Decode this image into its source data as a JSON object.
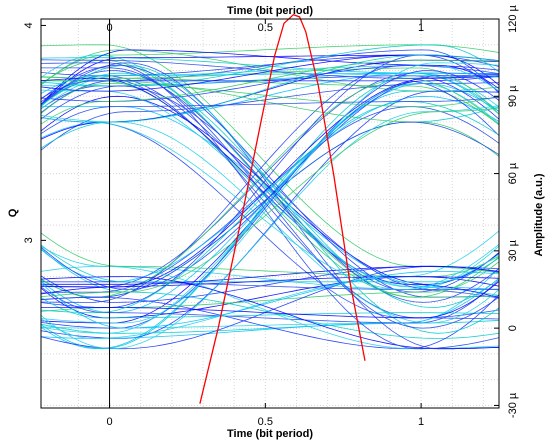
{
  "chart_data": {
    "type": "line",
    "subtype": "eye-diagram",
    "title": "",
    "top_axis": {
      "label": "Time (bit period)",
      "range": [
        -0.22,
        1.25
      ],
      "ticks": [
        {
          "value": 0,
          "label": "0"
        },
        {
          "value": 0.5,
          "label": "0.5"
        },
        {
          "value": 1,
          "label": "1"
        }
      ]
    },
    "bottom_axis": {
      "label": "Time (bit period)",
      "range": [
        -0.22,
        1.25
      ],
      "ticks": [
        {
          "value": 0,
          "label": "0"
        },
        {
          "value": 0.5,
          "label": "0.5"
        },
        {
          "value": 1,
          "label": "1"
        }
      ]
    },
    "left_axis": {
      "label": "Q",
      "range": [
        2.22,
        4.03
      ],
      "ticks": [
        {
          "value": 3,
          "label": "3"
        },
        {
          "value": 4,
          "label": "4"
        }
      ]
    },
    "right_axis": {
      "label": "Amplitude (a.u.)",
      "range": [
        -31,
        120
      ],
      "ticks": [
        {
          "value": -30,
          "label": "-30 µ"
        },
        {
          "value": 0,
          "label": "0"
        },
        {
          "value": 30,
          "label": "30 µ"
        },
        {
          "value": 60,
          "label": "60 µ"
        },
        {
          "value": 90,
          "label": "90 µ"
        },
        {
          "value": 120,
          "label": "120 µ"
        }
      ]
    },
    "grid": true,
    "eye": {
      "unit_interval": [
        0,
        1
      ],
      "crossing_level": 52,
      "levels": {
        "one": [
          80,
          84,
          86,
          88,
          90,
          92,
          94,
          95,
          96,
          97,
          98,
          99,
          100,
          101,
          102,
          103,
          104,
          105,
          106,
          108,
          110
        ],
        "zero": [
          -8,
          -4,
          -2,
          0,
          2,
          4,
          6,
          8,
          10,
          12,
          13,
          14,
          15,
          16,
          17,
          18,
          20,
          22,
          24
        ]
      },
      "colors": [
        "#0000ff",
        "#1a35ff",
        "#2244ee",
        "#00bfff",
        "#00cccc",
        "#20d0e8",
        "#33cc66"
      ]
    },
    "q_curve": {
      "color": "#ff0000",
      "x": [
        0.29,
        0.35,
        0.42,
        0.49,
        0.53,
        0.56,
        0.59,
        0.61,
        0.63,
        0.67,
        0.72,
        0.77,
        0.82
      ],
      "q": [
        2.24,
        2.6,
        3.08,
        3.58,
        3.86,
        4.01,
        4.05,
        4.04,
        3.97,
        3.72,
        3.3,
        2.82,
        2.44
      ]
    }
  }
}
